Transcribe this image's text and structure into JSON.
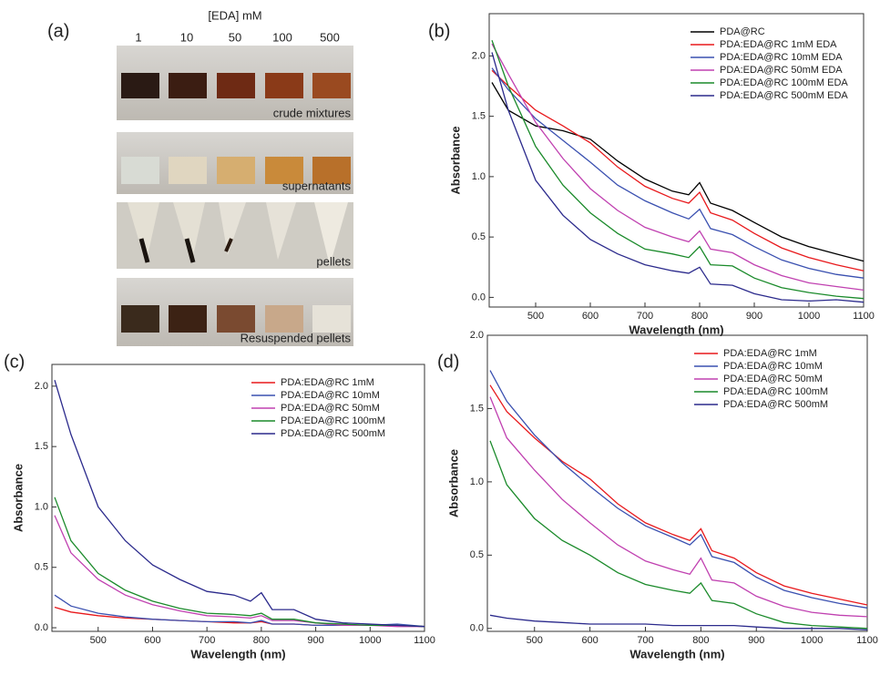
{
  "panel_a": {
    "label": "(a)",
    "header": "[EDA] mM",
    "concentrations": [
      "1",
      "10",
      "50",
      "100",
      "500"
    ],
    "rows": [
      "crude mixtures",
      "supernatants",
      "pellets",
      "Resuspended pellets"
    ]
  },
  "chart_data": [
    {
      "type": "line",
      "panel_label": "(b)",
      "xlabel": "Wavelength (nm)",
      "ylabel": "Absorbance",
      "legend": "upper right",
      "x": [
        420,
        450,
        500,
        550,
        600,
        650,
        700,
        750,
        780,
        800,
        820,
        860,
        900,
        950,
        1000,
        1050,
        1100
      ],
      "xlim": [
        415,
        1100
      ],
      "ylim": [
        -0.08,
        2.35
      ],
      "xticks": [
        500,
        600,
        700,
        800,
        900,
        1000,
        1100
      ],
      "yticks": [
        {
          "value": 0,
          "label": "0.0"
        },
        0.5,
        {
          "value": 1,
          "label": "1.0"
        },
        1.5,
        {
          "value": 2,
          "label": "2.0"
        }
      ],
      "series": [
        {
          "name": "PDA@RC",
          "color": "#000000",
          "values": [
            1.78,
            1.55,
            1.42,
            1.38,
            1.31,
            1.13,
            0.98,
            0.88,
            0.85,
            0.95,
            0.78,
            0.72,
            0.62,
            0.5,
            0.42,
            0.36,
            0.3
          ]
        },
        {
          "name": "PDA:EDA@RC 1mM EDA",
          "color": "#e8191c",
          "values": [
            1.88,
            1.75,
            1.55,
            1.42,
            1.28,
            1.08,
            0.92,
            0.82,
            0.78,
            0.87,
            0.7,
            0.64,
            0.53,
            0.41,
            0.33,
            0.27,
            0.22
          ]
        },
        {
          "name": "PDA:EDA@RC 10mM EDA",
          "color": "#3a50b0",
          "values": [
            1.9,
            1.72,
            1.48,
            1.3,
            1.12,
            0.93,
            0.8,
            0.7,
            0.65,
            0.73,
            0.57,
            0.52,
            0.42,
            0.31,
            0.24,
            0.19,
            0.16
          ]
        },
        {
          "name": "PDA:EDA@RC 50mM EDA",
          "color": "#c040b0",
          "values": [
            2.1,
            1.85,
            1.45,
            1.15,
            0.9,
            0.72,
            0.58,
            0.5,
            0.46,
            0.55,
            0.4,
            0.37,
            0.27,
            0.18,
            0.12,
            0.09,
            0.06
          ]
        },
        {
          "name": "PDA:EDA@RC 100mM EDA",
          "color": "#1a8a2a",
          "values": [
            2.13,
            1.75,
            1.25,
            0.93,
            0.7,
            0.53,
            0.4,
            0.36,
            0.33,
            0.42,
            0.27,
            0.26,
            0.16,
            0.08,
            0.04,
            0.01,
            -0.01
          ]
        },
        {
          "name": "PDA:EDA@RC 500mM EDA",
          "color": "#2b2a8c",
          "values": [
            2.03,
            1.55,
            0.97,
            0.68,
            0.48,
            0.36,
            0.27,
            0.22,
            0.2,
            0.25,
            0.11,
            0.1,
            0.03,
            -0.02,
            -0.03,
            -0.02,
            -0.04
          ]
        }
      ]
    },
    {
      "type": "line",
      "panel_label": "(c)",
      "xlabel": "Wavelength (nm)",
      "ylabel": "Absorbance",
      "legend": "upper right",
      "x": [
        420,
        450,
        500,
        550,
        600,
        650,
        700,
        750,
        780,
        800,
        820,
        860,
        900,
        950,
        1000,
        1050,
        1100
      ],
      "xlim": [
        415,
        1100
      ],
      "ylim": [
        -0.03,
        2.18
      ],
      "xticks": [
        500,
        600,
        700,
        800,
        900,
        1000,
        1100
      ],
      "yticks": [
        {
          "value": 0,
          "label": "0.0"
        },
        0.5,
        {
          "value": 1,
          "label": "1.0"
        },
        1.5,
        {
          "value": 2,
          "label": "2.0"
        }
      ],
      "series": [
        {
          "name": "PDA:EDA@RC 1mM",
          "color": "#e8191c",
          "values": [
            0.17,
            0.13,
            0.1,
            0.08,
            0.07,
            0.06,
            0.05,
            0.04,
            0.04,
            0.05,
            0.03,
            0.03,
            0.02,
            0.02,
            0.02,
            0.02,
            0.01
          ]
        },
        {
          "name": "PDA:EDA@RC 10mM",
          "color": "#3a50b0",
          "values": [
            0.27,
            0.18,
            0.12,
            0.09,
            0.07,
            0.06,
            0.05,
            0.05,
            0.04,
            0.06,
            0.03,
            0.03,
            0.02,
            0.02,
            0.02,
            0.03,
            0.01
          ]
        },
        {
          "name": "PDA:EDA@RC 50mM",
          "color": "#c040b0",
          "values": [
            0.93,
            0.62,
            0.4,
            0.27,
            0.19,
            0.14,
            0.1,
            0.09,
            0.08,
            0.1,
            0.06,
            0.06,
            0.04,
            0.02,
            0.02,
            0.01,
            0.01
          ]
        },
        {
          "name": "PDA:EDA@RC 100mM",
          "color": "#1a8a2a",
          "values": [
            1.08,
            0.72,
            0.45,
            0.31,
            0.22,
            0.16,
            0.12,
            0.11,
            0.1,
            0.12,
            0.07,
            0.07,
            0.04,
            0.03,
            0.02,
            0.02,
            0.01
          ]
        },
        {
          "name": "PDA:EDA@RC 500mM",
          "color": "#2b2a8c",
          "values": [
            2.05,
            1.6,
            1.0,
            0.72,
            0.52,
            0.4,
            0.3,
            0.27,
            0.22,
            0.29,
            0.15,
            0.15,
            0.07,
            0.04,
            0.03,
            0.02,
            0.01
          ]
        }
      ]
    },
    {
      "type": "line",
      "panel_label": "(d)",
      "xlabel": "Wavelength (nm)",
      "ylabel": "Absorbance",
      "legend": "upper right",
      "x": [
        420,
        450,
        500,
        550,
        600,
        650,
        700,
        750,
        780,
        800,
        820,
        860,
        900,
        950,
        1000,
        1050,
        1100
      ],
      "xlim": [
        415,
        1100
      ],
      "ylim": [
        -0.02,
        2.0
      ],
      "xticks": [
        500,
        600,
        700,
        800,
        900,
        1000,
        1100
      ],
      "yticks": [
        {
          "value": 0,
          "label": "0.0"
        },
        0.5,
        {
          "value": 1,
          "label": "1.0"
        },
        1.5,
        {
          "value": 2,
          "label": "2.0"
        }
      ],
      "series": [
        {
          "name": "PDA:EDA@RC 1mM",
          "color": "#e8191c",
          "values": [
            1.66,
            1.48,
            1.3,
            1.14,
            1.02,
            0.85,
            0.72,
            0.64,
            0.6,
            0.68,
            0.53,
            0.48,
            0.38,
            0.29,
            0.24,
            0.2,
            0.16
          ]
        },
        {
          "name": "PDA:EDA@RC 10mM",
          "color": "#3a50b0",
          "values": [
            1.76,
            1.55,
            1.32,
            1.13,
            0.97,
            0.82,
            0.7,
            0.62,
            0.57,
            0.64,
            0.49,
            0.45,
            0.35,
            0.26,
            0.21,
            0.17,
            0.14
          ]
        },
        {
          "name": "PDA:EDA@RC 50mM",
          "color": "#c040b0",
          "values": [
            1.58,
            1.3,
            1.08,
            0.88,
            0.72,
            0.57,
            0.46,
            0.4,
            0.37,
            0.48,
            0.33,
            0.31,
            0.22,
            0.15,
            0.11,
            0.09,
            0.08
          ]
        },
        {
          "name": "PDA:EDA@RC 100mM",
          "color": "#1a8a2a",
          "values": [
            1.28,
            0.98,
            0.75,
            0.6,
            0.5,
            0.38,
            0.3,
            0.26,
            0.24,
            0.31,
            0.19,
            0.17,
            0.1,
            0.04,
            0.02,
            0.01,
            0.0
          ]
        },
        {
          "name": "PDA:EDA@RC 500mM",
          "color": "#2b2a8c",
          "values": [
            0.09,
            0.07,
            0.05,
            0.04,
            0.03,
            0.03,
            0.03,
            0.02,
            0.02,
            0.02,
            0.02,
            0.02,
            0.01,
            0.0,
            0.0,
            0.0,
            -0.01
          ]
        }
      ]
    }
  ]
}
